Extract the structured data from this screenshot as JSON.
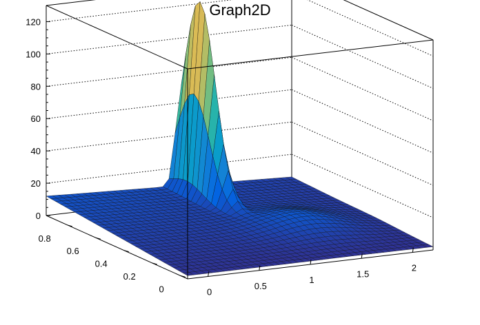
{
  "chart_data": {
    "type": "surface",
    "title": "Graph2D",
    "xlabel": "",
    "ylabel": "",
    "zlabel": "",
    "xlim": [
      -0.2,
      2.2
    ],
    "ylim": [
      -0.05,
      0.95
    ],
    "zlim": [
      0,
      130
    ],
    "x_ticks": [
      "0",
      "0.5",
      "1",
      "1.5",
      "2"
    ],
    "y_ticks": [
      "0",
      "0.2",
      "0.4",
      "0.6",
      "0.8"
    ],
    "z_ticks": [
      "0",
      "20",
      "40",
      "60",
      "80",
      "100",
      "120"
    ],
    "grid": true,
    "palette": [
      "#352a87",
      "#0363e1",
      "#1485d4",
      "#06a7c6",
      "#38b99e",
      "#92bf73",
      "#d9ba56",
      "#fcce2e",
      "#f9fb0e"
    ],
    "peak": {
      "x": 1.12,
      "y": 0.82,
      "z": 128
    },
    "surface_samples": [
      {
        "x": 0.0,
        "y": 0.0,
        "z": 2
      },
      {
        "x": 0.0,
        "y": 0.9,
        "z": 12
      },
      {
        "x": 1.0,
        "y": 0.1,
        "z": 3
      },
      {
        "x": 1.0,
        "y": 0.85,
        "z": 18
      },
      {
        "x": 1.12,
        "y": 0.82,
        "z": 128
      },
      {
        "x": 1.2,
        "y": 0.6,
        "z": 25
      },
      {
        "x": 1.5,
        "y": 0.4,
        "z": 8
      },
      {
        "x": 2.0,
        "y": 0.1,
        "z": 4
      },
      {
        "x": 2.2,
        "y": 0.0,
        "z": 1
      }
    ]
  }
}
